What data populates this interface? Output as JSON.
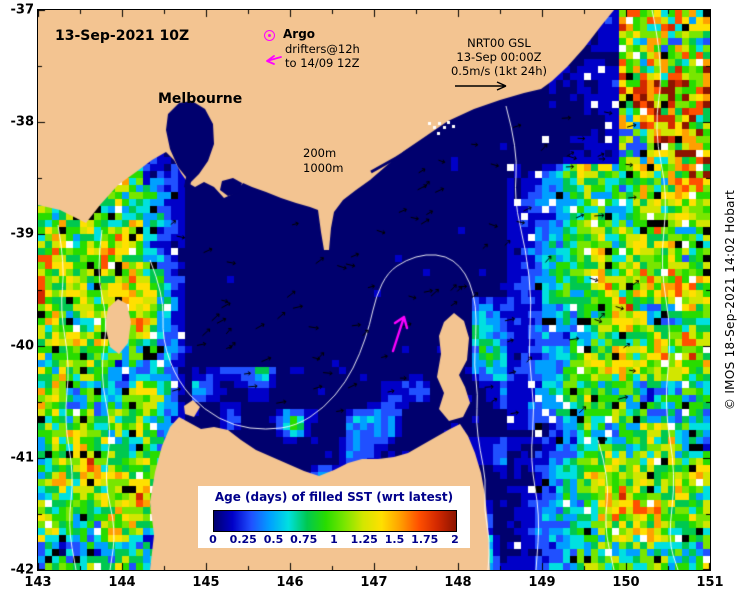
{
  "header": {
    "datetime": "13-Sep-2021 10Z"
  },
  "legend": {
    "argo_label": "Argo",
    "drifters_line1": "drifters@12h",
    "drifters_line2": "to 14/09 12Z"
  },
  "annotation_gsl": {
    "line1": "NRT00 GSL",
    "line2": "13-Sep 00:00Z",
    "line3": "0.5m/s (1kt 24h)"
  },
  "labels": {
    "city": "Melbourne",
    "depth_200m": "200m",
    "depth_1000m": "1000m"
  },
  "colorbar": {
    "title": "Age (days) of filled SST (wrt latest)",
    "tick_labels": [
      "0",
      "0.25",
      "0.5",
      "0.75",
      "1",
      "1.25",
      "1.5",
      "1.75",
      "2"
    ],
    "range": [
      0,
      2
    ]
  },
  "axes": {
    "x_tick_labels": [
      "143",
      "144",
      "145",
      "146",
      "147",
      "148",
      "149",
      "150",
      "151"
    ],
    "y_tick_labels": [
      "-37",
      "-38",
      "-39",
      "-40",
      "-41",
      "-42"
    ]
  },
  "credit": "© IMOS 18-Sep-2021 14:02 Hobart",
  "map": {
    "land_color": "#f3c491",
    "ocean_color": "#00006e",
    "drifter_color": "#ff00ff",
    "contour_color": "#ffffff",
    "vector_color": "#000000",
    "palette": [
      "#00006e",
      "#0000c8",
      "#2050ff",
      "#00a0ff",
      "#00e0e0",
      "#00c850",
      "#28dc00",
      "#78e600",
      "#d2e600",
      "#ffe000",
      "#ffa000",
      "#ff5000",
      "#d22800",
      "#8c1400"
    ]
  }
}
